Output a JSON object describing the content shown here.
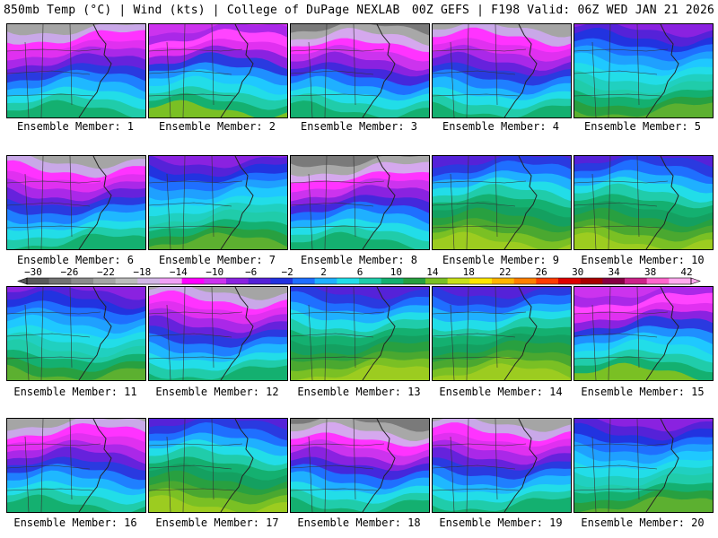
{
  "header": {
    "left": "850mb Temp (°C) | Wind (kts) | College of DuPage NEXLAB",
    "right": "00Z GEFS | F198 Valid: 06Z WED JAN 21 2026"
  },
  "panels": [
    {
      "label": "Ensemble Member: 1",
      "style": "cold"
    },
    {
      "label": "Ensemble Member: 2",
      "style": "mid"
    },
    {
      "label": "Ensemble Member: 3",
      "style": "vcold"
    },
    {
      "label": "Ensemble Member: 4",
      "style": "cold"
    },
    {
      "label": "Ensemble Member: 5",
      "style": "blue"
    },
    {
      "label": "Ensemble Member: 6",
      "style": "cold"
    },
    {
      "label": "Ensemble Member: 7",
      "style": "blue"
    },
    {
      "label": "Ensemble Member: 8",
      "style": "vcold"
    },
    {
      "label": "Ensemble Member: 9",
      "style": "warm"
    },
    {
      "label": "Ensemble Member: 10",
      "style": "warm"
    },
    {
      "label": "Ensemble Member: 11",
      "style": "blue"
    },
    {
      "label": "Ensemble Member: 12",
      "style": "cold"
    },
    {
      "label": "Ensemble Member: 13",
      "style": "warm"
    },
    {
      "label": "Ensemble Member: 14",
      "style": "warm"
    },
    {
      "label": "Ensemble Member: 15",
      "style": "mid"
    },
    {
      "label": "Ensemble Member: 16",
      "style": "cold"
    },
    {
      "label": "Ensemble Member: 17",
      "style": "warm"
    },
    {
      "label": "Ensemble Member: 18",
      "style": "vcold"
    },
    {
      "label": "Ensemble Member: 19",
      "style": "cold"
    },
    {
      "label": "Ensemble Member: 20",
      "style": "blue"
    }
  ],
  "colorbar": {
    "labels": [
      "−30",
      "−26",
      "−22",
      "−18",
      "−14",
      "−10",
      "−6",
      "−2",
      "2",
      "6",
      "10",
      "14",
      "18",
      "22",
      "26",
      "30",
      "34",
      "38",
      "42"
    ],
    "colors": [
      "#5a5a5a",
      "#737373",
      "#8c8c8c",
      "#a5a5a5",
      "#bcbcbc",
      "#d2b6e6",
      "#f0a0f5",
      "#ff00ff",
      "#cc33ee",
      "#8a22e0",
      "#5522d8",
      "#2233e0",
      "#1f6fff",
      "#1fb0ff",
      "#22dde8",
      "#20ccaa",
      "#14b070",
      "#28a040",
      "#7ac024",
      "#c8e01a",
      "#ffe600",
      "#ffb400",
      "#ff8000",
      "#ff3c00",
      "#dd0000",
      "#aa0000",
      "#880044",
      "#cc2288",
      "#ff66cc",
      "#ffaaee"
    ]
  },
  "styles": {
    "vcold": [
      "#7a7a7a",
      "#a8a8a8",
      "#d5a8ee",
      "#ff33ff",
      "#cc33ee",
      "#8a22e0",
      "#4428dc",
      "#1f6fff",
      "#1fb0ff",
      "#22dde8",
      "#20ccaa",
      "#14b070"
    ],
    "cold": [
      "#a5a5a5",
      "#c9a8e8",
      "#ff33ff",
      "#e030f0",
      "#aa28e8",
      "#6622dc",
      "#2a3ae0",
      "#1f7fff",
      "#1fb8ff",
      "#22dde8",
      "#20ccaa",
      "#14b070"
    ],
    "blue": [
      "#8a22e0",
      "#5522d8",
      "#2233e0",
      "#1f6fff",
      "#1fa0ff",
      "#1fc8ff",
      "#22dde8",
      "#20d0c0",
      "#20ccaa",
      "#14b070",
      "#28a040",
      "#5cb030"
    ],
    "mid": [
      "#cc33ee",
      "#aa28e8",
      "#ff44ff",
      "#e030f0",
      "#8a22e0",
      "#2a3ae0",
      "#1f8fff",
      "#1fc8ff",
      "#22dde8",
      "#20ccaa",
      "#14b070",
      "#7ac024"
    ],
    "warm": [
      "#5522d8",
      "#2a3ae0",
      "#1f6fff",
      "#1fb0ff",
      "#22dde8",
      "#20ccaa",
      "#14b070",
      "#14a060",
      "#28a040",
      "#4aa830",
      "#7ac024",
      "#9ccc20"
    ]
  }
}
